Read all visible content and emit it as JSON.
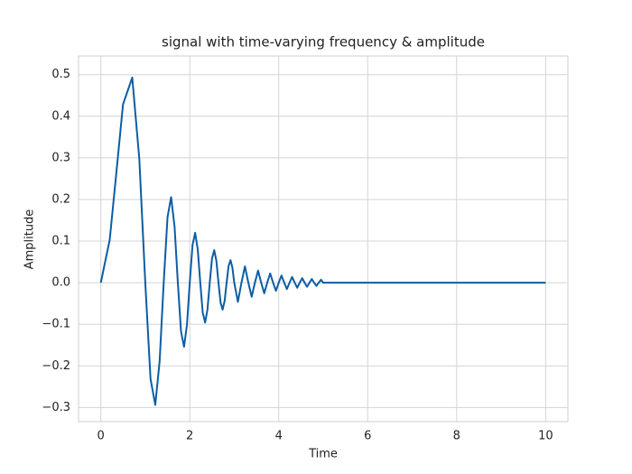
{
  "chart_data": {
    "type": "line",
    "title": "signal with time-varying frequency & amplitude",
    "x_label": "Time",
    "y_label": "Amplitude",
    "x": [
      0,
      0.2,
      0.35,
      0.5,
      0.7071,
      0.866,
      1,
      1.118,
      1.2247,
      1.3229,
      1.4142,
      1.5,
      1.5811,
      1.6583,
      1.7321,
      1.8028,
      1.8708,
      1.9365,
      2,
      2.0616,
      2.1213,
      2.1794,
      2.2361,
      2.2913,
      2.3452,
      2.3979,
      2.4495,
      2.5,
      2.5495,
      2.5981,
      2.6458,
      2.6926,
      2.7386,
      2.7839,
      2.8284,
      2.8723,
      2.9155,
      2.958,
      3,
      3.0822,
      3.1623,
      3.2404,
      3.3166,
      3.3912,
      3.4641,
      3.5355,
      3.6056,
      3.6742,
      3.7417,
      3.8079,
      3.873,
      3.937,
      4,
      4.062,
      4.1231,
      4.1833,
      4.2426,
      4.3012,
      4.3589,
      4.4159,
      4.4721,
      4.5277,
      4.5826,
      4.6368,
      4.6904,
      4.7434,
      4.7958,
      4.8477,
      4.899,
      4.9497,
      5,
      10
    ],
    "series": [
      {
        "name": "signal",
        "color": "#0c5da5",
        "values": [
          0,
          0.1026,
          0.2645,
          0.4289,
          0.4931,
          0.2974,
          0,
          -0.2312,
          -0.2938,
          -0.1884,
          0,
          0.1578,
          0.2057,
          0.1347,
          0,
          -0.1165,
          -0.154,
          -0.102,
          0,
          0.0899,
          0.1199,
          0.08,
          0,
          -0.0715,
          -0.0958,
          -0.0643,
          0,
          0.058,
          0.0781,
          0.0526,
          0,
          -0.0479,
          -0.0647,
          -0.0437,
          0,
          0.04,
          0.0542,
          0.0367,
          0,
          -0.0459,
          0,
          0.0392,
          0,
          -0.0337,
          0,
          0.0291,
          0,
          -0.0254,
          0,
          0.0222,
          0,
          -0.0195,
          0,
          0.0172,
          0,
          -0.0153,
          0,
          0.0136,
          0,
          -0.0121,
          0,
          0.0108,
          0,
          -0.0097,
          0,
          0.0087,
          0,
          -0.0078,
          0,
          0.0071,
          0,
          0
        ]
      }
    ],
    "xlim": [
      -0.5,
      10.5
    ],
    "ylim": [
      -0.334,
      0.545
    ],
    "xticks": [
      0,
      2,
      4,
      6,
      8,
      10
    ],
    "yticks": [
      {
        "value": -0.3,
        "label": "−0.3"
      },
      {
        "value": -0.2,
        "label": "−0.2"
      },
      {
        "value": -0.1,
        "label": "−0.1"
      },
      {
        "value": 0,
        "label": "0.0"
      },
      0.1,
      0.2,
      0.3,
      0.4,
      0.5
    ],
    "grid": true
  }
}
